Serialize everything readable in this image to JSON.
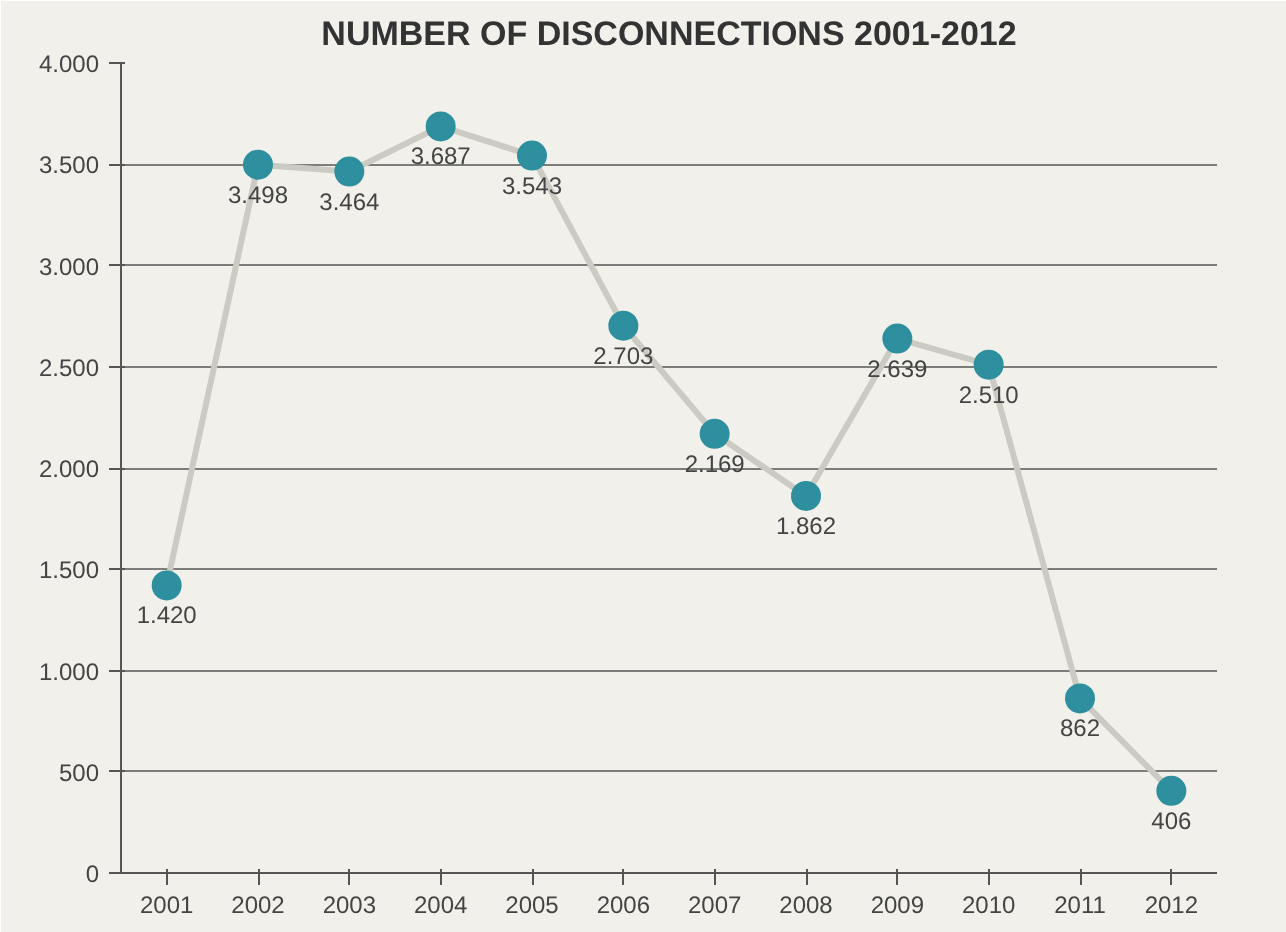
{
  "chart_data": {
    "type": "line",
    "title": "NUMBER OF DISCONNECTIONS 2001-2012",
    "categories": [
      "2001",
      "2002",
      "2003",
      "2004",
      "2005",
      "2006",
      "2007",
      "2008",
      "2009",
      "2010",
      "2011",
      "2012"
    ],
    "series": [
      {
        "color": "#2e8f9e",
        "values": [
          1420,
          3498,
          3464,
          3687,
          3543,
          2703,
          2169,
          1862,
          2639,
          2510,
          862,
          406
        ],
        "value_labels": [
          "1.420",
          "3.498",
          "3.464",
          "3.687",
          "3.543",
          "2.703",
          "2.169",
          "1.862",
          "2.639",
          "2.510",
          "862",
          "406"
        ]
      }
    ],
    "ylim": [
      0,
      4000
    ],
    "yticks": [
      {
        "value": 0,
        "label": "0"
      },
      {
        "value": 500,
        "label": "500"
      },
      {
        "value": 1000,
        "label": "1.000"
      },
      {
        "value": 1500,
        "label": "1.500"
      },
      {
        "value": 2000,
        "label": "2.000"
      },
      {
        "value": 2500,
        "label": "2.500"
      },
      {
        "value": 3000,
        "label": "3.000"
      },
      {
        "value": 3500,
        "label": "3.500"
      },
      {
        "value": 4000,
        "label": "4.000"
      }
    ],
    "grid": "y",
    "marker": "circle",
    "line_style": "solid"
  }
}
